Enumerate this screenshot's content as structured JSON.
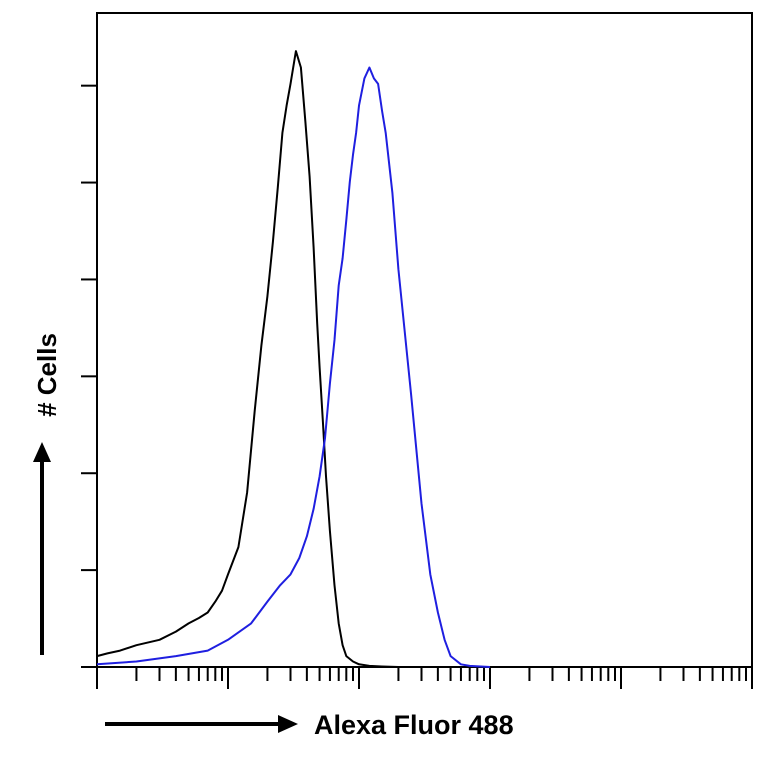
{
  "chart_data": {
    "type": "line",
    "title": "",
    "xlabel": "Alexa Fluor 488",
    "ylabel": "# Cells",
    "x_scale": "log",
    "xlim": [
      1,
      100000
    ],
    "ylim": [
      0,
      120
    ],
    "grid": false,
    "legend": "none",
    "series": [
      {
        "color": "#000000",
        "x": [
          1,
          1.2,
          1.5,
          2,
          3,
          4,
          5,
          6,
          7,
          8,
          9,
          10,
          12,
          14,
          16,
          18,
          20,
          22,
          24,
          26,
          28,
          30,
          33,
          36,
          39,
          42,
          45,
          48,
          50,
          53,
          56,
          60,
          65,
          70,
          75,
          80,
          90,
          100,
          120,
          150,
          200,
          300
        ],
        "y": [
          2,
          2.5,
          3,
          4,
          5,
          6.5,
          8,
          9,
          10,
          12,
          14,
          17,
          22,
          32,
          47,
          59,
          68,
          78,
          88,
          98,
          103,
          107,
          113,
          110,
          100,
          90,
          77,
          63,
          55,
          45,
          35,
          25,
          15,
          8,
          4,
          2,
          1,
          0.5,
          0.2,
          0.1,
          0,
          0
        ]
      },
      {
        "color": "#1f1fe0",
        "x": [
          1,
          2,
          4,
          7,
          10,
          15,
          20,
          25,
          30,
          35,
          40,
          45,
          50,
          55,
          60,
          65,
          70,
          75,
          80,
          85,
          90,
          95,
          100,
          110,
          120,
          130,
          140,
          150,
          160,
          180,
          200,
          250,
          300,
          350,
          400,
          450,
          500,
          600,
          700,
          1000
        ],
        "y": [
          0.5,
          1,
          2,
          3,
          5,
          8,
          12,
          15,
          17,
          20,
          24,
          29,
          35,
          42,
          52,
          60,
          70,
          75,
          82,
          89,
          94,
          98,
          103,
          108,
          110,
          108,
          107,
          102,
          98,
          87,
          73,
          50,
          30,
          17,
          10,
          5,
          2,
          0.5,
          0.2,
          0
        ]
      }
    ]
  },
  "axis": {
    "y_tick_count": 6,
    "x_decades": 5
  }
}
